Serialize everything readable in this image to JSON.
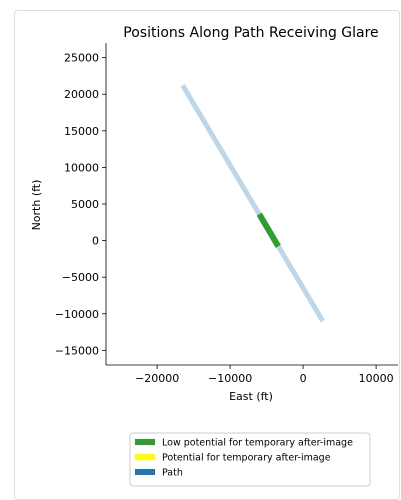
{
  "chart_data": {
    "type": "line",
    "title": "Positions Along Path Receiving Glare",
    "xlabel": "East (ft)",
    "ylabel": "North (ft)",
    "xlim": [
      -27000,
      13000
    ],
    "ylim": [
      -17000,
      27000
    ],
    "xticks": [
      -20000,
      -10000,
      0,
      10000
    ],
    "xtick_labels": [
      "−20000",
      "−10000",
      "0",
      "10000"
    ],
    "yticks": [
      25000,
      20000,
      15000,
      10000,
      5000,
      0,
      -5000,
      -10000,
      -15000
    ],
    "ytick_labels": [
      "25000",
      "20000",
      "15000",
      "10000",
      "5000",
      "0",
      "−5000",
      "−10000",
      "−15000"
    ],
    "grid": false,
    "legend_position": "bottom-center",
    "series": [
      {
        "name": "Path",
        "color": "#bcd6ea",
        "x": [
          -16500,
          2700
        ],
        "y": [
          21200,
          -11000
        ]
      },
      {
        "name": "Low potential for temporary after-image",
        "color": "#2ca02c",
        "x": [
          -6000,
          -3400
        ],
        "y": [
          3600,
          -800
        ]
      },
      {
        "name": "Potential for temporary after-image",
        "color": "#ffff00",
        "x": [],
        "y": []
      }
    ],
    "legend": [
      {
        "label": "Low potential for temporary after-image",
        "color": "#2ca02c"
      },
      {
        "label": "Potential for temporary after-image",
        "color": "#ffff00"
      },
      {
        "label": "Path",
        "color": "#1f77b4"
      }
    ]
  }
}
